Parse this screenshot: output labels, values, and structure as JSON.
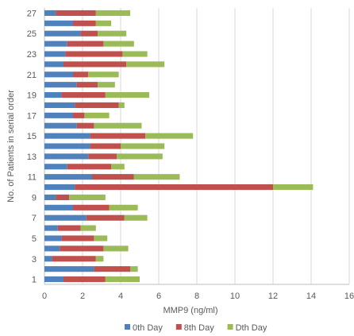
{
  "chart_data": {
    "type": "bar",
    "orientation": "horizontal",
    "stacked": true,
    "title": "",
    "xlabel": "MMP9 (ng/ml)",
    "ylabel": "No. of Patients in serial order",
    "xlim": [
      0,
      16
    ],
    "x_ticks": [
      0,
      2,
      4,
      6,
      8,
      10,
      12,
      14,
      16
    ],
    "categories": [
      "1",
      "2",
      "3",
      "4",
      "5",
      "6",
      "7",
      "8",
      "9",
      "10",
      "11",
      "12",
      "13",
      "14",
      "15",
      "16",
      "17",
      "18",
      "19",
      "20",
      "21",
      "22",
      "23",
      "24",
      "25",
      "26",
      "27"
    ],
    "y_tick_labels_shown": [
      "1",
      "3",
      "5",
      "7",
      "9",
      "11",
      "13",
      "15",
      "17",
      "19",
      "21",
      "23",
      "25",
      "27"
    ],
    "grid": "vertical",
    "legend_position": "bottom",
    "series": [
      {
        "name": "0th Day",
        "color": "#4f81bd",
        "values": [
          1.0,
          2.6,
          0.4,
          0.8,
          0.9,
          0.7,
          2.2,
          1.5,
          0.6,
          1.6,
          2.5,
          1.2,
          2.3,
          2.4,
          2.4,
          1.7,
          1.5,
          1.6,
          0.9,
          1.7,
          1.5,
          1.0,
          1.1,
          1.2,
          1.9,
          1.5,
          0.6
        ]
      },
      {
        "name": "8th Day",
        "color": "#c0504d",
        "values": [
          2.2,
          1.9,
          2.3,
          2.3,
          1.7,
          1.2,
          2.0,
          1.9,
          0.7,
          10.4,
          2.2,
          2.3,
          1.5,
          1.6,
          2.9,
          0.9,
          0.6,
          2.3,
          2.3,
          1.1,
          0.8,
          3.3,
          3.0,
          1.9,
          0.9,
          1.2,
          2.1
        ]
      },
      {
        "name": "Dth Day",
        "color": "#9bbb59",
        "values": [
          1.8,
          0.4,
          0.4,
          1.3,
          0.7,
          0.8,
          1.2,
          1.5,
          1.9,
          2.1,
          2.4,
          0.7,
          2.4,
          2.3,
          2.5,
          2.5,
          1.3,
          0.3,
          2.3,
          0.9,
          1.6,
          2.0,
          1.3,
          1.6,
          1.5,
          0.8,
          1.8
        ]
      }
    ]
  }
}
